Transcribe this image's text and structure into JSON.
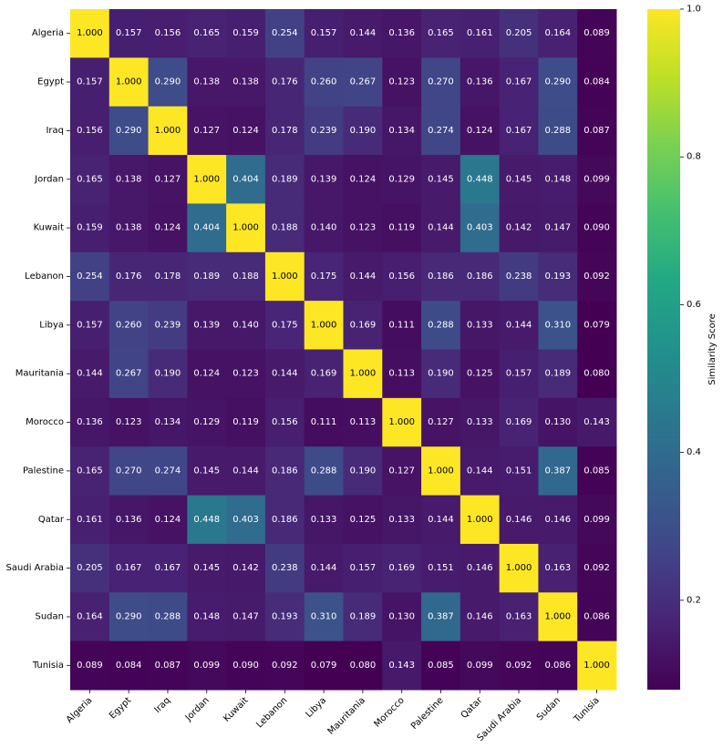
{
  "chart_data": {
    "type": "heatmap",
    "title": "",
    "xlabel": "",
    "ylabel": "",
    "colormap": "viridis",
    "value_range": [
      0.079,
      1.0
    ],
    "colorbar": {
      "label": "Similarity Score",
      "ticks": [
        0.2,
        0.4,
        0.6,
        0.8,
        1.0
      ],
      "tick_labels": [
        "0.2",
        "0.4",
        "0.6",
        "0.8",
        "1.0"
      ]
    },
    "categories": [
      "Algeria",
      "Egypt",
      "Iraq",
      "Jordan",
      "Kuwait",
      "Lebanon",
      "Libya",
      "Mauritania",
      "Morocco",
      "Palestine",
      "Qatar",
      "Saudi Arabia",
      "Sudan",
      "Tunisia"
    ],
    "matrix": [
      [
        1.0,
        0.157,
        0.156,
        0.165,
        0.159,
        0.254,
        0.157,
        0.144,
        0.136,
        0.165,
        0.161,
        0.205,
        0.164,
        0.089
      ],
      [
        0.157,
        1.0,
        0.29,
        0.138,
        0.138,
        0.176,
        0.26,
        0.267,
        0.123,
        0.27,
        0.136,
        0.167,
        0.29,
        0.084
      ],
      [
        0.156,
        0.29,
        1.0,
        0.127,
        0.124,
        0.178,
        0.239,
        0.19,
        0.134,
        0.274,
        0.124,
        0.167,
        0.288,
        0.087
      ],
      [
        0.165,
        0.138,
        0.127,
        1.0,
        0.404,
        0.189,
        0.139,
        0.124,
        0.129,
        0.145,
        0.448,
        0.145,
        0.148,
        0.099
      ],
      [
        0.159,
        0.138,
        0.124,
        0.404,
        1.0,
        0.188,
        0.14,
        0.123,
        0.119,
        0.144,
        0.403,
        0.142,
        0.147,
        0.09
      ],
      [
        0.254,
        0.176,
        0.178,
        0.189,
        0.188,
        1.0,
        0.175,
        0.144,
        0.156,
        0.186,
        0.186,
        0.238,
        0.193,
        0.092
      ],
      [
        0.157,
        0.26,
        0.239,
        0.139,
        0.14,
        0.175,
        1.0,
        0.169,
        0.111,
        0.288,
        0.133,
        0.144,
        0.31,
        0.079
      ],
      [
        0.144,
        0.267,
        0.19,
        0.124,
        0.123,
        0.144,
        0.169,
        1.0,
        0.113,
        0.19,
        0.125,
        0.157,
        0.189,
        0.08
      ],
      [
        0.136,
        0.123,
        0.134,
        0.129,
        0.119,
        0.156,
        0.111,
        0.113,
        1.0,
        0.127,
        0.133,
        0.169,
        0.13,
        0.143
      ],
      [
        0.165,
        0.27,
        0.274,
        0.145,
        0.144,
        0.186,
        0.288,
        0.19,
        0.127,
        1.0,
        0.144,
        0.151,
        0.387,
        0.085
      ],
      [
        0.161,
        0.136,
        0.124,
        0.448,
        0.403,
        0.186,
        0.133,
        0.125,
        0.133,
        0.144,
        1.0,
        0.146,
        0.146,
        0.099
      ],
      [
        0.205,
        0.167,
        0.167,
        0.145,
        0.142,
        0.238,
        0.144,
        0.157,
        0.169,
        0.151,
        0.146,
        1.0,
        0.163,
        0.092
      ],
      [
        0.164,
        0.29,
        0.288,
        0.148,
        0.147,
        0.193,
        0.31,
        0.189,
        0.13,
        0.387,
        0.146,
        0.163,
        1.0,
        0.086
      ],
      [
        0.089,
        0.084,
        0.087,
        0.099,
        0.09,
        0.092,
        0.079,
        0.08,
        0.143,
        0.085,
        0.099,
        0.092,
        0.086,
        1.0
      ]
    ]
  }
}
